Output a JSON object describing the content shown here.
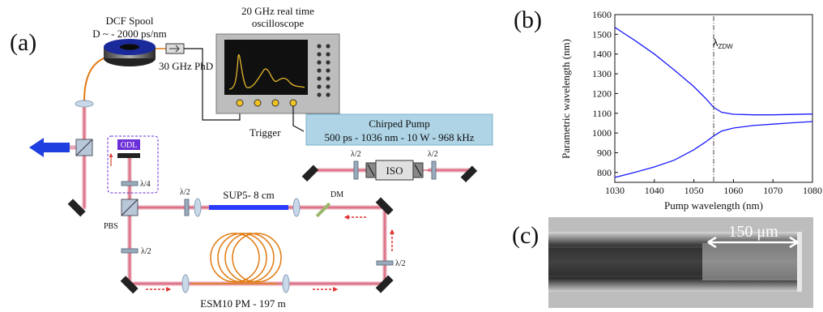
{
  "panel_a": {
    "label": "(a)",
    "dcf_title": "DCF Spool",
    "dcf_dispersion": "D ~ - 2000 ps/nm",
    "photodiode": "30 GHz PhD",
    "scope_title_1": "20 GHz real time",
    "scope_title_2": "oscilloscope",
    "trigger": "Trigger",
    "pump_title": "Chirped Pump",
    "pump_specs": "500 ps - 1036 nm - 10 W - 968 kHz",
    "odl": "ODL",
    "quarter_wave": "λ/4",
    "half_wave": "λ/2",
    "iso": "ISO",
    "sup5": "SUP5- 8 cm",
    "dm": "DM",
    "pbs": "PBS",
    "esm": "ESM10 PM - 197 m"
  },
  "panel_b": {
    "label": "(b)",
    "zdw_label": "λ",
    "zdw_sub": "ZDW",
    "xlabel": "Pump wavelength (nm)",
    "ylabel": "Parametric wavelength (nm)",
    "x_ticks": [
      "1030",
      "1040",
      "1050",
      "1060",
      "1070",
      "1080"
    ],
    "y_ticks": [
      "800",
      "900",
      "1000",
      "1100",
      "1200",
      "1300",
      "1400",
      "1500",
      "1600"
    ]
  },
  "panel_c": {
    "label": "(c)",
    "scale": "150 μm"
  },
  "chart_data": {
    "type": "line",
    "xlabel": "Pump wavelength (nm)",
    "ylabel": "Parametric wavelength (nm)",
    "xlim": [
      1030,
      1080
    ],
    "ylim": [
      750,
      1600
    ],
    "zdw": 1055,
    "series": [
      {
        "x": [
          1030,
          1035,
          1040,
          1045,
          1050,
          1053,
          1055,
          1057,
          1060,
          1065,
          1070,
          1075,
          1080
        ],
        "values": [
          1535,
          1470,
          1400,
          1320,
          1235,
          1175,
          1130,
          1105,
          1095,
          1092,
          1092,
          1094,
          1096
        ]
      },
      {
        "x": [
          1030,
          1035,
          1040,
          1045,
          1050,
          1053,
          1055,
          1057,
          1060,
          1065,
          1070,
          1075,
          1080
        ],
        "values": [
          775,
          800,
          828,
          862,
          915,
          955,
          985,
          1010,
          1025,
          1038,
          1045,
          1052,
          1058
        ]
      }
    ],
    "grid": false
  },
  "colors": {
    "beam": "#e8a5b2",
    "beam_core": "#d4566f",
    "fiber": "#e07a10",
    "pump_box": "#aed4e6",
    "sup5": "#2a3cff",
    "odl": "#6a2fd8",
    "curve": "#1a1aff",
    "arrow": "#1f3fe0"
  }
}
